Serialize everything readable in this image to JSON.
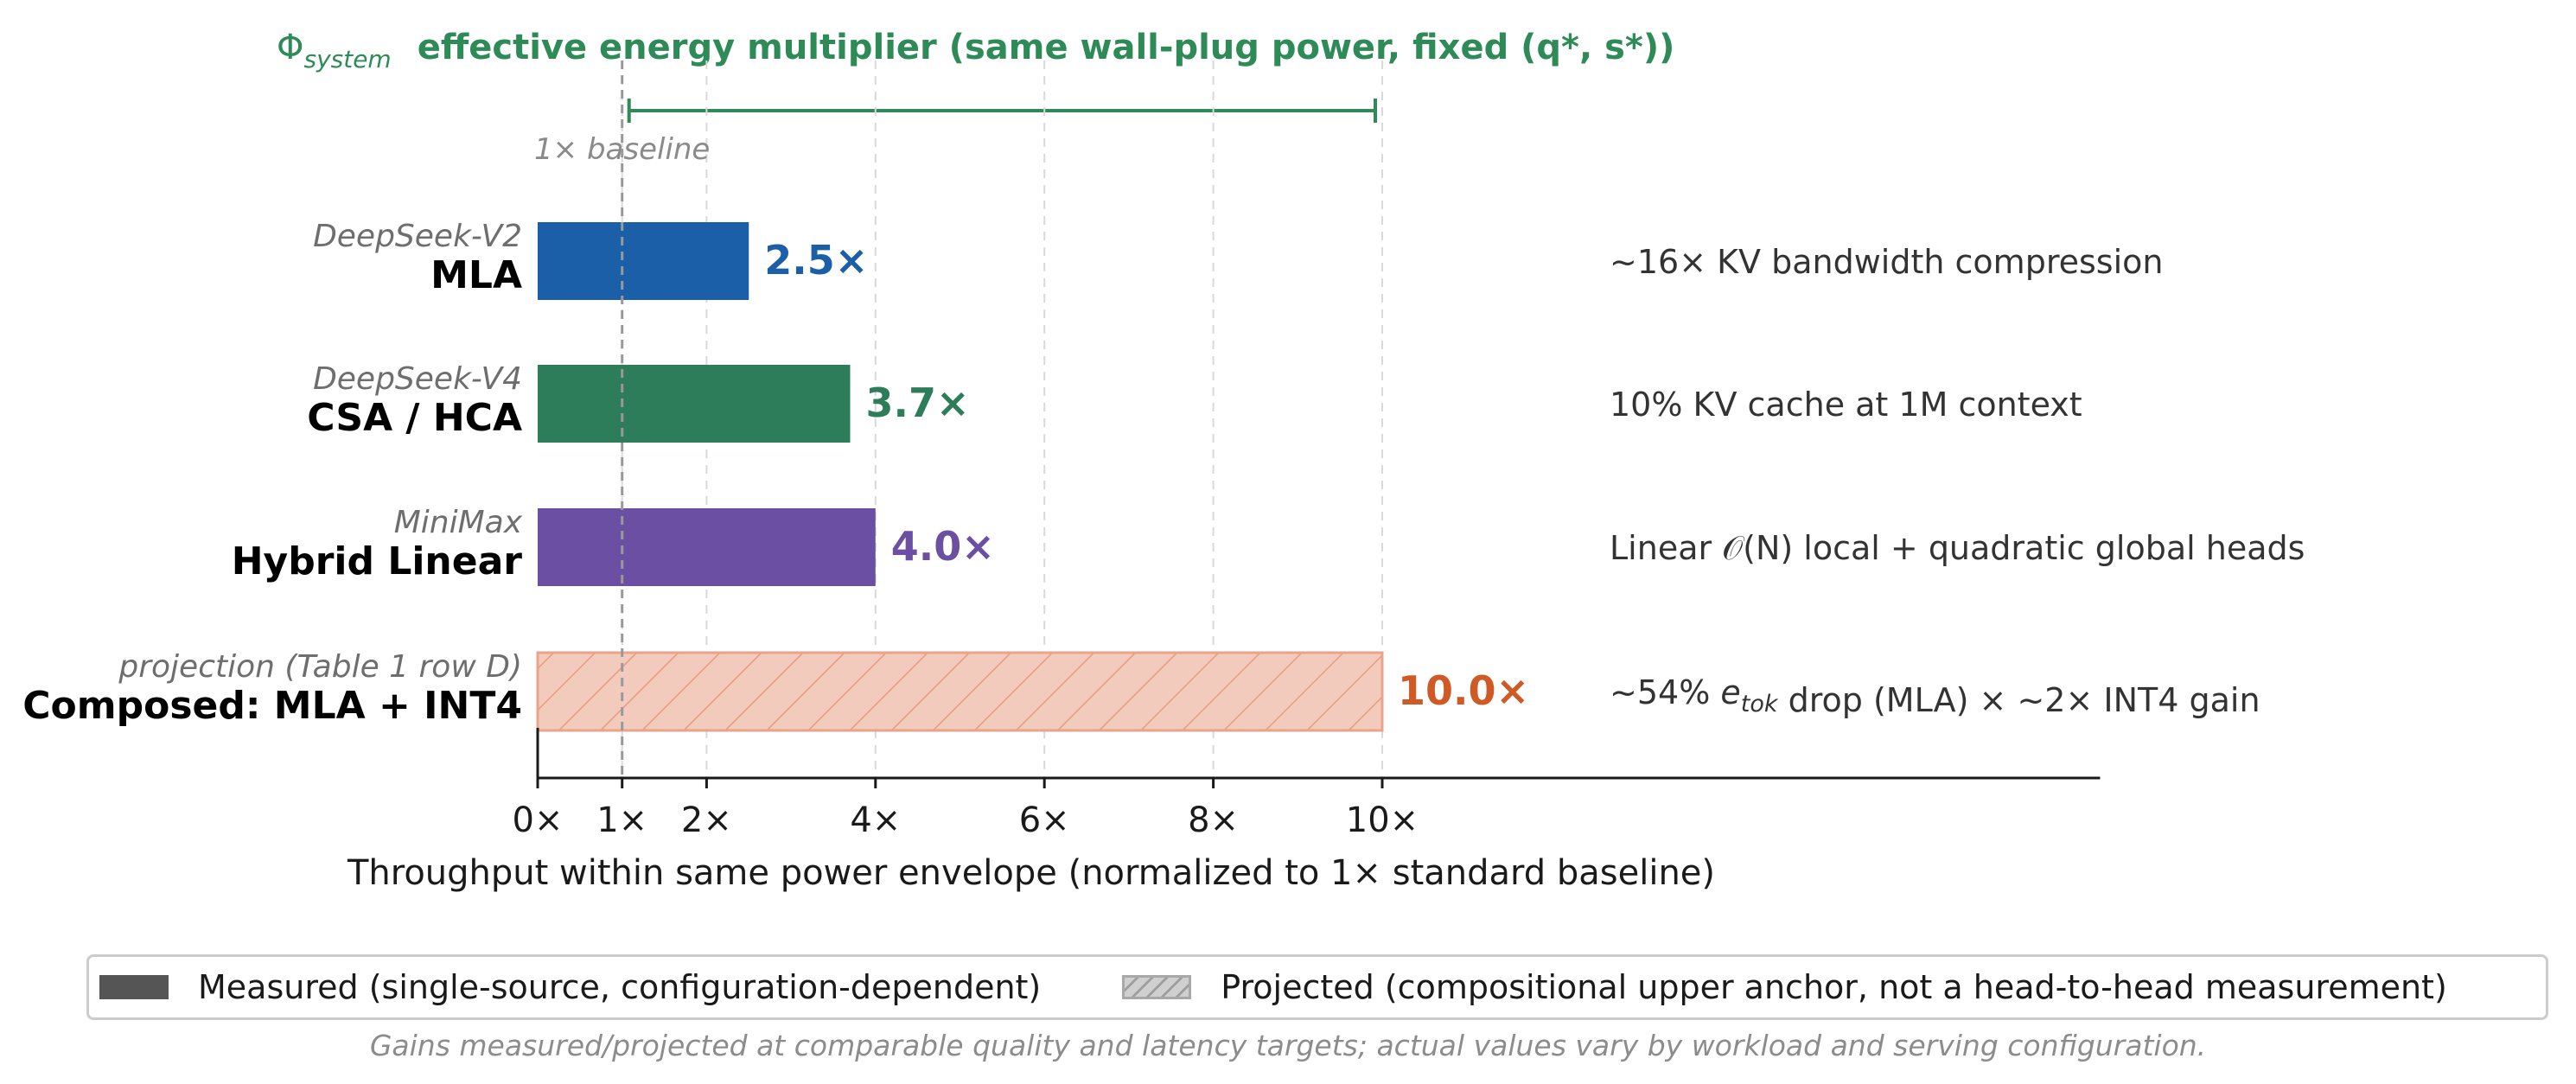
{
  "chart_data": {
    "type": "bar",
    "orientation": "horizontal",
    "title": {
      "symbol": "Φ",
      "symbol_sub": "system",
      "text": "effective energy multiplier  (same wall-plug power, fixed (q*, s*))",
      "bracket": [
        1,
        10
      ]
    },
    "baseline_label": "1× baseline",
    "baseline_value": 1,
    "bars": [
      {
        "sublabel": "DeepSeek-V2",
        "label": "MLA",
        "value": 2.5,
        "value_label": "2.5×",
        "color": "#1b5fa8",
        "note": "~16× KV bandwidth compression",
        "projected": false
      },
      {
        "sublabel": "DeepSeek-V4",
        "label": "CSA / HCA",
        "value": 3.7,
        "value_label": "3.7×",
        "color": "#2d7d5b",
        "note": "10% KV cache at 1M context",
        "projected": false
      },
      {
        "sublabel": "MiniMax",
        "label": "Hybrid Linear",
        "value": 4.0,
        "value_label": "4.0×",
        "color": "#6a4fa3",
        "note": "Linear 𝒪(N) local + quadratic global heads",
        "projected": false
      },
      {
        "sublabel": "projection (Table 1 row D)",
        "label": "Composed: MLA + INT4",
        "value": 10.0,
        "value_label": "10.0×",
        "color": "#cf5a26",
        "fill": "#f3cbbd",
        "note": "~54% e_tok drop (MLA) × ~2× INT4 gain",
        "projected": true
      }
    ],
    "xticks": [
      0,
      1,
      2,
      4,
      6,
      8,
      10
    ],
    "xtick_labels": [
      "0×",
      "1×",
      "2×",
      "4×",
      "6×",
      "8×",
      "10×"
    ],
    "xlim": [
      0,
      18.5
    ],
    "grid": "vertical dashed",
    "xlabel": "Throughput within same power envelope  (normalized to 1× standard baseline)"
  },
  "legend": {
    "placement": "bottom",
    "measured": "Measured  (single-source, configuration-dependent)",
    "projected": "Projected  (compositional upper anchor, not a head-to-head measurement)"
  },
  "footnote": "Gains measured/projected at comparable quality and latency targets; actual values vary by workload and serving configuration.",
  "colors": {
    "accent": "#2e8b57",
    "axis": "#1a1a1a",
    "grid": "#d9d9d9",
    "baseline": "#999999"
  }
}
